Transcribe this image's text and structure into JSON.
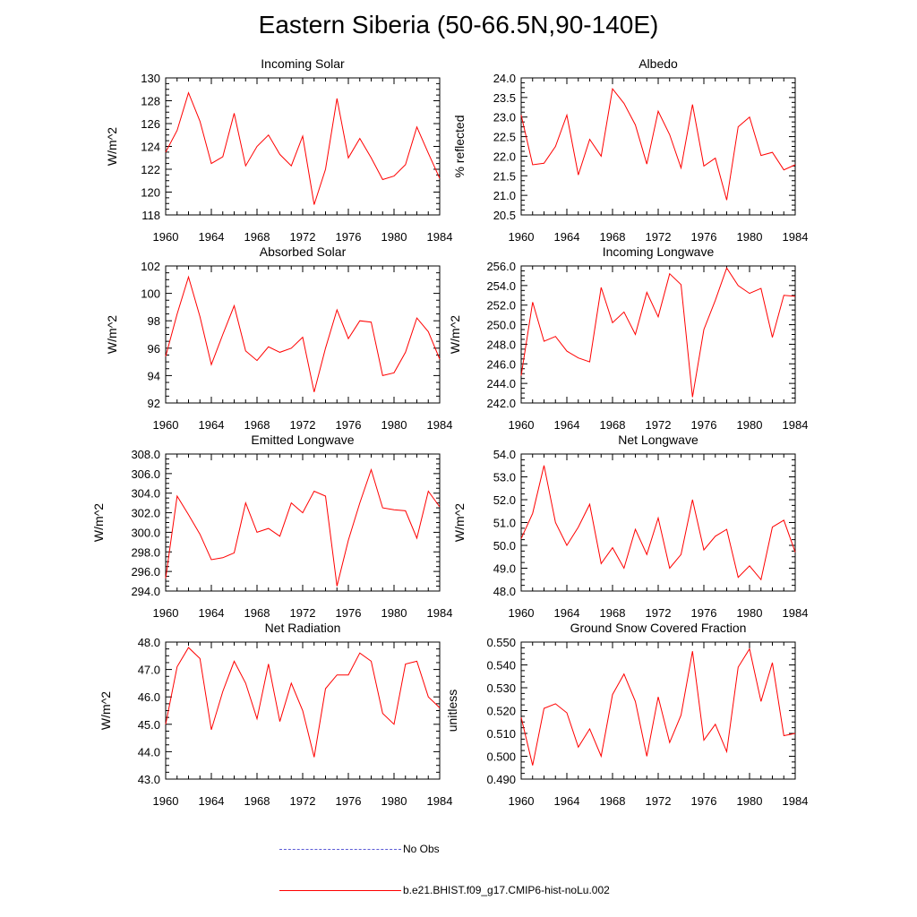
{
  "figure": {
    "title": "Eastern Siberia (50-66.5N,90-140E)"
  },
  "legend": {
    "items": [
      {
        "label": "No Obs",
        "style": "dashed",
        "color": "#5b5bd6"
      },
      {
        "label": "b.e21.BHIST.f09_g17.CMIP6-hist-noLu.002",
        "style": "solid",
        "color": "#ff0000"
      }
    ]
  },
  "chart_data": [
    {
      "type": "line",
      "title": "Incoming Solar",
      "ylabel": "W/m^2",
      "xlim": [
        1960,
        1984
      ],
      "ylim": [
        118,
        130
      ],
      "yticks": [
        "118",
        "120",
        "122",
        "124",
        "126",
        "128",
        "130"
      ],
      "xticks": [
        "1960",
        "1964",
        "1968",
        "1972",
        "1976",
        "1980",
        "1984"
      ],
      "series": [
        {
          "color": "#ff0000",
          "x": [
            1960,
            1961,
            1962,
            1963,
            1964,
            1965,
            1966,
            1967,
            1968,
            1969,
            1970,
            1971,
            1972,
            1973,
            1974,
            1975,
            1976,
            1977,
            1978,
            1979,
            1980,
            1981,
            1982,
            1983,
            1984
          ],
          "values": [
            123.5,
            125.4,
            128.7,
            126.2,
            122.5,
            123.1,
            126.9,
            122.3,
            124.0,
            125.0,
            123.3,
            122.3,
            124.9,
            118.9,
            122.0,
            128.2,
            123.0,
            124.7,
            123.0,
            121.1,
            121.4,
            122.4,
            125.7,
            123.4,
            121.2
          ]
        }
      ]
    },
    {
      "type": "line",
      "title": "Albedo",
      "ylabel": "% reflected",
      "xlim": [
        1960,
        1984
      ],
      "ylim": [
        20.5,
        24.0
      ],
      "yticks": [
        "20.5",
        "21.0",
        "21.5",
        "22.0",
        "22.5",
        "23.0",
        "23.5",
        "24.0"
      ],
      "xticks": [
        "1960",
        "1964",
        "1968",
        "1972",
        "1976",
        "1980",
        "1984"
      ],
      "series": [
        {
          "color": "#ff0000",
          "x": [
            1960,
            1961,
            1962,
            1963,
            1964,
            1965,
            1966,
            1967,
            1968,
            1969,
            1970,
            1971,
            1972,
            1973,
            1974,
            1975,
            1976,
            1977,
            1978,
            1979,
            1980,
            1981,
            1982,
            1983,
            1984
          ],
          "values": [
            23.05,
            21.78,
            21.82,
            22.25,
            23.05,
            21.52,
            22.43,
            22.0,
            23.72,
            23.35,
            22.8,
            21.8,
            23.15,
            22.55,
            21.7,
            23.32,
            21.75,
            21.95,
            20.88,
            22.75,
            23.0,
            22.02,
            22.1,
            21.65,
            21.78
          ]
        }
      ]
    },
    {
      "type": "line",
      "title": "Absorbed Solar",
      "ylabel": "W/m^2",
      "xlim": [
        1960,
        1984
      ],
      "ylim": [
        92,
        102
      ],
      "yticks": [
        "92",
        "94",
        "96",
        "98",
        "100",
        "102"
      ],
      "xticks": [
        "1960",
        "1964",
        "1968",
        "1972",
        "1976",
        "1980",
        "1984"
      ],
      "series": [
        {
          "color": "#ff0000",
          "x": [
            1960,
            1961,
            1962,
            1963,
            1964,
            1965,
            1966,
            1967,
            1968,
            1969,
            1970,
            1971,
            1972,
            1973,
            1974,
            1975,
            1976,
            1977,
            1978,
            1979,
            1980,
            1981,
            1982,
            1983,
            1984
          ],
          "values": [
            95.4,
            98.5,
            101.2,
            98.3,
            94.8,
            97.0,
            99.1,
            95.8,
            95.1,
            96.1,
            95.7,
            96.0,
            96.8,
            92.8,
            96.0,
            98.8,
            96.7,
            98.0,
            97.9,
            94.0,
            94.2,
            95.7,
            98.2,
            97.2,
            95.2
          ]
        }
      ]
    },
    {
      "type": "line",
      "title": "Incoming Longwave",
      "ylabel": "W/m^2",
      "xlim": [
        1960,
        1984
      ],
      "ylim": [
        242.0,
        256.0
      ],
      "yticks": [
        "242.0",
        "244.0",
        "246.0",
        "248.0",
        "250.0",
        "252.0",
        "254.0",
        "256.0"
      ],
      "xticks": [
        "1960",
        "1964",
        "1968",
        "1972",
        "1976",
        "1980",
        "1984"
      ],
      "series": [
        {
          "color": "#ff0000",
          "x": [
            1960,
            1961,
            1962,
            1963,
            1964,
            1965,
            1966,
            1967,
            1968,
            1969,
            1970,
            1971,
            1972,
            1973,
            1974,
            1975,
            1976,
            1977,
            1978,
            1979,
            1980,
            1981,
            1982,
            1983,
            1984
          ],
          "values": [
            244.8,
            252.3,
            248.3,
            248.8,
            247.3,
            246.6,
            246.2,
            253.8,
            250.2,
            251.3,
            249.0,
            253.3,
            250.8,
            255.2,
            254.1,
            242.6,
            249.5,
            252.5,
            255.8,
            254.0,
            253.2,
            253.7,
            248.7,
            253.0,
            252.9
          ]
        }
      ]
    },
    {
      "type": "line",
      "title": "Emitted Longwave",
      "ylabel": "W/m^2",
      "xlim": [
        1960,
        1984
      ],
      "ylim": [
        294.0,
        308.0
      ],
      "yticks": [
        "294.0",
        "296.0",
        "298.0",
        "300.0",
        "302.0",
        "304.0",
        "306.0",
        "308.0"
      ],
      "xticks": [
        "1960",
        "1964",
        "1968",
        "1972",
        "1976",
        "1980",
        "1984"
      ],
      "series": [
        {
          "color": "#ff0000",
          "x": [
            1960,
            1961,
            1962,
            1963,
            1964,
            1965,
            1966,
            1967,
            1968,
            1969,
            1970,
            1971,
            1972,
            1973,
            1974,
            1975,
            1976,
            1977,
            1978,
            1979,
            1980,
            1981,
            1982,
            1983,
            1984
          ],
          "values": [
            295.3,
            303.7,
            301.8,
            299.8,
            297.2,
            297.4,
            297.9,
            303.0,
            300.0,
            300.4,
            299.6,
            303.0,
            302.0,
            304.2,
            303.7,
            294.5,
            299.2,
            303.0,
            306.4,
            302.5,
            302.3,
            302.2,
            299.4,
            304.2,
            302.6
          ]
        }
      ]
    },
    {
      "type": "line",
      "title": "Net Longwave",
      "ylabel": "W/m^2",
      "xlim": [
        1960,
        1984
      ],
      "ylim": [
        48.0,
        54.0
      ],
      "yticks": [
        "48.0",
        "49.0",
        "50.0",
        "51.0",
        "52.0",
        "53.0",
        "54.0"
      ],
      "xticks": [
        "1960",
        "1964",
        "1968",
        "1972",
        "1976",
        "1980",
        "1984"
      ],
      "series": [
        {
          "color": "#ff0000",
          "x": [
            1960,
            1961,
            1962,
            1963,
            1964,
            1965,
            1966,
            1967,
            1968,
            1969,
            1970,
            1971,
            1972,
            1973,
            1974,
            1975,
            1976,
            1977,
            1978,
            1979,
            1980,
            1981,
            1982,
            1983,
            1984
          ],
          "values": [
            50.3,
            51.4,
            53.5,
            51.0,
            50.0,
            50.8,
            51.8,
            49.2,
            49.9,
            49.0,
            50.7,
            49.6,
            51.2,
            49.0,
            49.6,
            52.0,
            49.8,
            50.4,
            50.7,
            48.6,
            49.1,
            48.5,
            50.8,
            51.1,
            49.7
          ]
        }
      ]
    },
    {
      "type": "line",
      "title": "Net Radiation",
      "ylabel": "W/m^2",
      "xlim": [
        1960,
        1984
      ],
      "ylim": [
        43.0,
        48.0
      ],
      "yticks": [
        "43.0",
        "44.0",
        "45.0",
        "46.0",
        "47.0",
        "48.0"
      ],
      "xticks": [
        "1960",
        "1964",
        "1968",
        "1972",
        "1976",
        "1980",
        "1984"
      ],
      "series": [
        {
          "color": "#ff0000",
          "x": [
            1960,
            1961,
            1962,
            1963,
            1964,
            1965,
            1966,
            1967,
            1968,
            1969,
            1970,
            1971,
            1972,
            1973,
            1974,
            1975,
            1976,
            1977,
            1978,
            1979,
            1980,
            1981,
            1982,
            1983,
            1984
          ],
          "values": [
            45.0,
            47.1,
            47.8,
            47.4,
            44.8,
            46.2,
            47.3,
            46.5,
            45.2,
            47.2,
            45.1,
            46.5,
            45.5,
            43.8,
            46.3,
            46.8,
            46.8,
            47.6,
            47.3,
            45.4,
            45.0,
            47.2,
            47.3,
            46.0,
            45.6
          ]
        }
      ]
    },
    {
      "type": "line",
      "title": "Ground Snow Covered Fraction",
      "ylabel": "unitless",
      "xlim": [
        1960,
        1984
      ],
      "ylim": [
        0.49,
        0.55
      ],
      "yticks": [
        "0.490",
        "0.500",
        "0.510",
        "0.520",
        "0.530",
        "0.540",
        "0.550"
      ],
      "xticks": [
        "1960",
        "1964",
        "1968",
        "1972",
        "1976",
        "1980",
        "1984"
      ],
      "series": [
        {
          "color": "#ff0000",
          "x": [
            1960,
            1961,
            1962,
            1963,
            1964,
            1965,
            1966,
            1967,
            1968,
            1969,
            1970,
            1971,
            1972,
            1973,
            1974,
            1975,
            1976,
            1977,
            1978,
            1979,
            1980,
            1981,
            1982,
            1983,
            1984
          ],
          "values": [
            0.517,
            0.496,
            0.521,
            0.523,
            0.519,
            0.504,
            0.512,
            0.5,
            0.527,
            0.536,
            0.524,
            0.5,
            0.526,
            0.506,
            0.518,
            0.546,
            0.507,
            0.514,
            0.502,
            0.539,
            0.547,
            0.524,
            0.541,
            0.509,
            0.51
          ]
        }
      ]
    }
  ]
}
